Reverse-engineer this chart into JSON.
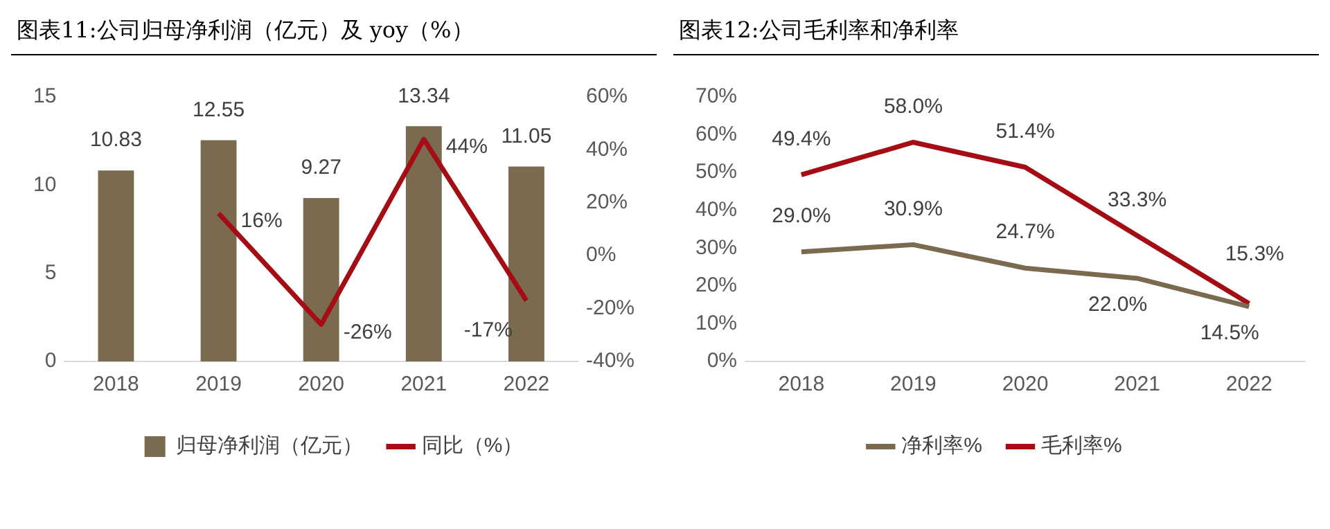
{
  "chart_data": [
    {
      "type": "bar",
      "title": "图表11:公司归母净利润（亿元）及 yoy（%）",
      "categories": [
        "2018",
        "2019",
        "2020",
        "2021",
        "2022"
      ],
      "series": [
        {
          "name": "归母净利润（亿元）",
          "type": "bar",
          "color": "#7a6a4f",
          "values": [
            10.83,
            12.55,
            9.27,
            13.34,
            11.05
          ]
        },
        {
          "name": "同比（%）",
          "type": "line",
          "axis": "y2",
          "color": "#a50d14",
          "values": [
            null,
            16,
            -26,
            44,
            -17
          ],
          "value_labels": [
            null,
            "16%",
            "-26%",
            "44%",
            "-17%"
          ]
        }
      ],
      "ylim": [
        0,
        15
      ],
      "yticks": [
        0,
        5,
        10,
        15
      ],
      "y2lim": [
        -40,
        60
      ],
      "y2ticks": [
        {
          "value": -40,
          "label": "-40%"
        },
        {
          "value": -20,
          "label": "-20%"
        },
        {
          "value": 0,
          "label": "0%"
        },
        {
          "value": 20,
          "label": "20%"
        },
        {
          "value": 40,
          "label": "40%"
        },
        {
          "value": 60,
          "label": "60%"
        }
      ],
      "data_labels": true,
      "grid": false,
      "legend": "bottom",
      "marker": "none"
    },
    {
      "type": "line",
      "title": "图表12:公司毛利率和净利率",
      "categories": [
        "2018",
        "2019",
        "2020",
        "2021",
        "2022"
      ],
      "series": [
        {
          "name": "净利率%",
          "color": "#7a6a4f",
          "values": [
            29.0,
            30.9,
            24.7,
            22.0,
            14.5
          ],
          "value_labels": [
            "29.0%",
            "30.9%",
            "24.7%",
            "22.0%",
            "14.5%"
          ]
        },
        {
          "name": "毛利率%",
          "color": "#a50d14",
          "values": [
            49.4,
            58.0,
            51.4,
            33.3,
            15.3
          ],
          "value_labels": [
            "49.4%",
            "58.0%",
            "51.4%",
            "33.3%",
            "15.3%"
          ]
        }
      ],
      "ylim": [
        0,
        70
      ],
      "yticks": [
        {
          "value": 0,
          "label": "0%"
        },
        {
          "value": 10,
          "label": "10%"
        },
        {
          "value": 20,
          "label": "20%"
        },
        {
          "value": 30,
          "label": "30%"
        },
        {
          "value": 40,
          "label": "40%"
        },
        {
          "value": 50,
          "label": "50%"
        },
        {
          "value": 60,
          "label": "60%"
        },
        {
          "value": 70,
          "label": "70%"
        }
      ],
      "grid": false,
      "legend": "bottom",
      "marker": "none"
    }
  ]
}
